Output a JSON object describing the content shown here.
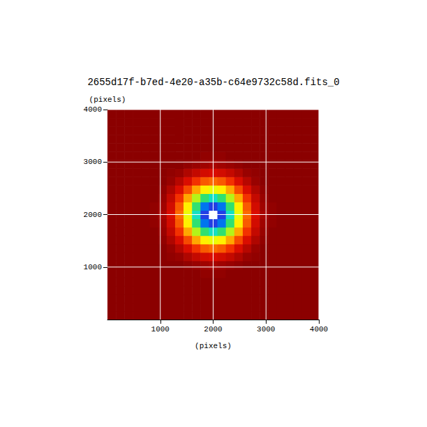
{
  "chart_data": {
    "type": "heatmap",
    "title": "2655d17f-b7ed-4e20-a35b-c64e9732c58d.fits_0",
    "xlabel": "(pixels)",
    "ylabel": "(pixels)",
    "x": [
      80,
      240,
      400,
      560,
      720,
      880,
      1040,
      1200,
      1360,
      1520,
      1680,
      1840,
      2000,
      2160,
      2320,
      2480,
      2640,
      2800,
      2960,
      3120,
      3280,
      3440,
      3600,
      3760,
      3920
    ],
    "y": [
      80,
      240,
      400,
      560,
      720,
      880,
      1040,
      1200,
      1360,
      1520,
      1680,
      1840,
      2000,
      2160,
      2320,
      2480,
      2640,
      2800,
      2960,
      3120,
      3280,
      3440,
      3600,
      3760,
      3920
    ],
    "cells": [
      [
        3,
        3,
        3,
        3,
        3,
        3,
        3,
        3,
        3,
        3,
        3,
        3,
        3,
        3,
        3,
        3,
        3,
        3,
        3,
        3,
        3,
        3,
        3,
        3,
        3
      ],
      [
        3,
        3,
        3,
        3,
        3,
        3,
        3,
        3,
        3,
        3,
        3,
        3,
        3,
        3,
        3,
        3,
        3,
        3,
        3,
        3,
        3,
        3,
        3,
        3,
        3
      ],
      [
        3,
        3,
        3,
        3,
        3,
        3,
        3,
        3,
        3,
        3,
        3,
        3,
        3,
        3,
        3,
        3,
        3,
        3,
        3,
        3,
        3,
        3,
        3,
        3,
        3
      ],
      [
        3,
        3,
        3,
        3,
        3,
        3,
        3,
        3,
        3,
        3,
        3,
        3,
        3,
        3,
        3,
        3,
        3,
        3,
        3,
        3,
        3,
        3,
        3,
        3,
        3
      ],
      [
        3,
        3,
        3,
        3,
        3,
        3,
        3,
        3,
        3,
        3,
        3,
        3,
        3,
        3,
        3,
        3,
        3,
        3,
        3,
        3,
        3,
        3,
        3,
        3,
        3
      ],
      [
        3,
        3,
        3,
        3,
        3,
        3,
        3,
        3,
        3,
        3,
        3,
        4,
        4,
        4,
        3,
        3,
        3,
        3,
        3,
        3,
        3,
        3,
        3,
        3,
        3
      ],
      [
        3,
        3,
        3,
        3,
        3,
        3,
        3,
        3,
        3,
        4,
        5,
        6,
        7,
        6,
        5,
        4,
        3,
        3,
        3,
        3,
        3,
        3,
        3,
        3,
        3
      ],
      [
        3,
        3,
        3,
        3,
        3,
        3,
        3,
        4,
        5,
        8,
        11,
        13,
        14,
        13,
        11,
        8,
        5,
        4,
        3,
        3,
        3,
        3,
        3,
        3,
        3
      ],
      [
        3,
        3,
        3,
        3,
        3,
        3,
        3,
        5,
        9,
        14,
        21,
        26,
        28,
        26,
        21,
        14,
        9,
        5,
        3,
        3,
        3,
        3,
        3,
        3,
        3
      ],
      [
        3,
        3,
        3,
        3,
        3,
        3,
        4,
        8,
        14,
        24,
        35,
        43,
        46,
        43,
        35,
        24,
        14,
        8,
        4,
        3,
        3,
        3,
        3,
        3,
        3
      ],
      [
        3,
        3,
        3,
        3,
        3,
        3,
        5,
        11,
        21,
        35,
        50,
        62,
        68,
        62,
        50,
        35,
        21,
        11,
        5,
        3,
        3,
        3,
        3,
        3,
        3
      ],
      [
        3,
        3,
        3,
        3,
        3,
        4,
        6,
        13,
        26,
        43,
        62,
        80,
        88,
        80,
        62,
        43,
        26,
        13,
        6,
        4,
        3,
        3,
        3,
        3,
        3
      ],
      [
        3,
        3,
        3,
        3,
        3,
        4,
        7,
        14,
        28,
        46,
        68,
        88,
        100,
        88,
        68,
        46,
        28,
        14,
        7,
        4,
        3,
        3,
        3,
        3,
        3
      ],
      [
        3,
        3,
        3,
        3,
        3,
        4,
        6,
        13,
        26,
        43,
        62,
        80,
        88,
        80,
        62,
        43,
        26,
        13,
        6,
        4,
        3,
        3,
        3,
        3,
        3
      ],
      [
        3,
        3,
        3,
        3,
        3,
        3,
        5,
        11,
        21,
        35,
        50,
        62,
        68,
        62,
        50,
        35,
        21,
        11,
        5,
        3,
        3,
        3,
        3,
        3,
        3
      ],
      [
        3,
        3,
        3,
        3,
        3,
        3,
        4,
        8,
        14,
        24,
        35,
        43,
        46,
        43,
        35,
        24,
        14,
        8,
        4,
        3,
        3,
        3,
        3,
        3,
        3
      ],
      [
        3,
        3,
        3,
        3,
        3,
        3,
        3,
        5,
        9,
        14,
        21,
        26,
        28,
        26,
        21,
        14,
        9,
        5,
        3,
        3,
        3,
        3,
        3,
        3,
        3
      ],
      [
        3,
        3,
        3,
        3,
        3,
        3,
        3,
        4,
        5,
        8,
        11,
        13,
        14,
        13,
        11,
        8,
        5,
        4,
        3,
        3,
        3,
        3,
        3,
        3,
        3
      ],
      [
        3,
        3,
        3,
        3,
        3,
        3,
        3,
        3,
        3,
        4,
        5,
        6,
        7,
        6,
        5,
        4,
        3,
        3,
        3,
        3,
        3,
        3,
        3,
        3,
        3
      ],
      [
        3,
        3,
        3,
        3,
        3,
        3,
        3,
        3,
        3,
        3,
        3,
        4,
        4,
        4,
        3,
        3,
        3,
        3,
        3,
        3,
        3,
        3,
        3,
        3,
        3
      ],
      [
        3,
        3,
        3,
        3,
        3,
        3,
        3,
        3,
        3,
        3,
        3,
        3,
        3,
        3,
        3,
        3,
        3,
        3,
        3,
        3,
        3,
        3,
        3,
        3,
        3
      ],
      [
        3,
        3,
        3,
        3,
        3,
        3,
        3,
        3,
        3,
        3,
        3,
        3,
        3,
        3,
        3,
        3,
        3,
        3,
        3,
        3,
        3,
        3,
        3,
        3,
        3
      ],
      [
        3,
        3,
        3,
        3,
        3,
        3,
        3,
        3,
        3,
        3,
        3,
        3,
        3,
        3,
        3,
        3,
        3,
        3,
        3,
        3,
        3,
        3,
        3,
        3,
        3
      ],
      [
        3,
        3,
        3,
        3,
        3,
        3,
        3,
        3,
        3,
        3,
        3,
        3,
        3,
        3,
        3,
        3,
        3,
        3,
        3,
        3,
        3,
        3,
        3,
        3,
        3
      ],
      [
        3,
        3,
        3,
        3,
        3,
        3,
        3,
        3,
        3,
        3,
        3,
        3,
        3,
        3,
        3,
        3,
        3,
        3,
        3,
        3,
        3,
        3,
        3,
        3,
        3
      ]
    ],
    "xlim": [
      0,
      4000
    ],
    "ylim": [
      0,
      4000
    ],
    "xticks": [
      1000,
      2000,
      3000,
      4000
    ],
    "yticks": [
      1000,
      2000,
      3000,
      4000
    ],
    "grid": true
  }
}
